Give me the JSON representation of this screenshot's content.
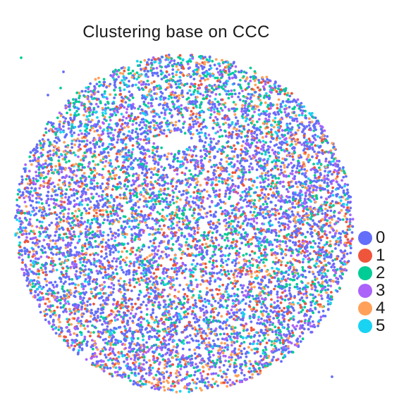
{
  "chart_data": {
    "type": "scatter",
    "title": "Clustering base on CCC",
    "xlabel": "",
    "ylabel": "",
    "grid": false,
    "legend_placement": "right",
    "shape": "circular tissue section of spots colored by cluster",
    "series": [
      {
        "name": "0",
        "color": "#636efa"
      },
      {
        "name": "1",
        "color": "#ef553b"
      },
      {
        "name": "2",
        "color": "#00cc96"
      },
      {
        "name": "3",
        "color": "#ab63fa"
      },
      {
        "name": "4",
        "color": "#ffa15a"
      },
      {
        "name": "5",
        "color": "#19d3f3"
      }
    ],
    "cluster_mix": [
      0.45,
      0.1,
      0.13,
      0.15,
      0.1,
      0.07
    ]
  }
}
